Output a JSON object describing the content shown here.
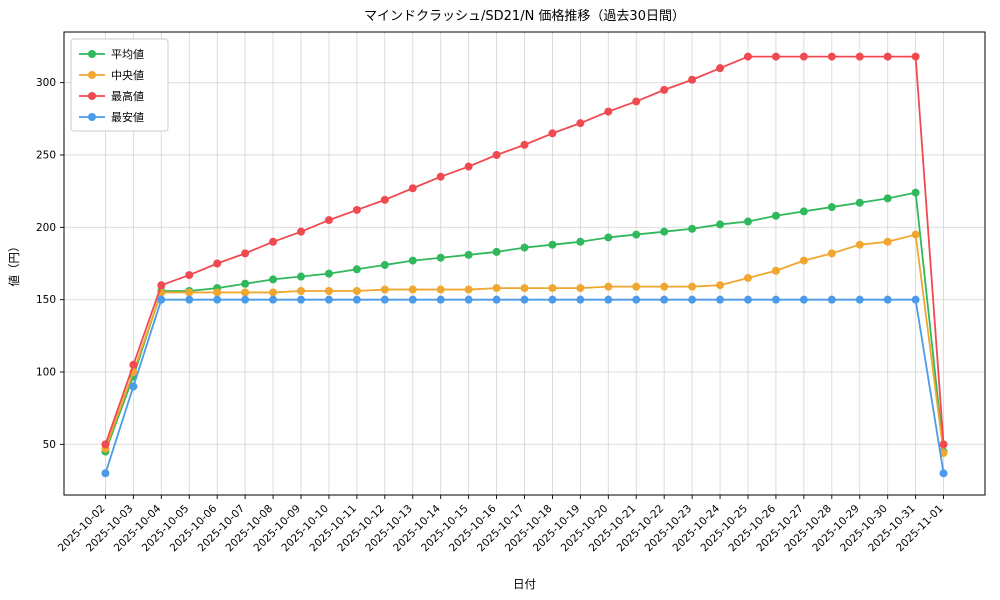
{
  "figure": {
    "title": "マインドクラッシュ/SD21/N 価格推移（過去30日間）",
    "xlabel": "日付",
    "ylabel": "値（円）"
  },
  "legend": {
    "position": "upper left",
    "entries": [
      "平均値",
      "中央値",
      "最高値",
      "最安値"
    ]
  },
  "chart_data": {
    "type": "line",
    "title": "マインドクラッシュ/SD21/N 価格推移（過去30日間）",
    "xlabel": "日付",
    "ylabel": "値（円）",
    "grid": true,
    "legend_position": "upper left",
    "ylim": [
      15,
      335
    ],
    "yticks": [
      50,
      100,
      150,
      200,
      250,
      300
    ],
    "x": [
      "2025-10-02",
      "2025-10-03",
      "2025-10-04",
      "2025-10-05",
      "2025-10-06",
      "2025-10-07",
      "2025-10-08",
      "2025-10-09",
      "2025-10-10",
      "2025-10-11",
      "2025-10-12",
      "2025-10-13",
      "2025-10-14",
      "2025-10-15",
      "2025-10-16",
      "2025-10-17",
      "2025-10-18",
      "2025-10-19",
      "2025-10-20",
      "2025-10-21",
      "2025-10-22",
      "2025-10-23",
      "2025-10-24",
      "2025-10-25",
      "2025-10-26",
      "2025-10-27",
      "2025-10-28",
      "2025-10-29",
      "2025-10-30",
      "2025-10-31",
      "2025-11-01"
    ],
    "series": [
      {
        "name": "平均値",
        "color": "#30b85c",
        "values": [
          45,
          97,
          156,
          156,
          158,
          161,
          164,
          166,
          168,
          171,
          174,
          177,
          179,
          181,
          183,
          186,
          188,
          190,
          193,
          195,
          197,
          199,
          202,
          204,
          208,
          211,
          214,
          217,
          220,
          224,
          45
        ]
      },
      {
        "name": "中央値",
        "color": "#f0a62f",
        "values": [
          47,
          100,
          155,
          155,
          155,
          155,
          155,
          156,
          156,
          156,
          157,
          157,
          157,
          157,
          158,
          158,
          158,
          158,
          159,
          159,
          159,
          159,
          160,
          165,
          170,
          177,
          182,
          188,
          190,
          195,
          44
        ]
      },
      {
        "name": "最高値",
        "color": "#f04a50",
        "values": [
          50,
          105,
          160,
          167,
          175,
          182,
          190,
          197,
          205,
          212,
          219,
          227,
          235,
          242,
          250,
          257,
          265,
          272,
          280,
          287,
          295,
          302,
          310,
          318,
          318,
          318,
          318,
          318,
          318,
          318,
          50
        ]
      },
      {
        "name": "最安値",
        "color": "#4c9bea",
        "values": [
          30,
          90,
          150,
          150,
          150,
          150,
          150,
          150,
          150,
          150,
          150,
          150,
          150,
          150,
          150,
          150,
          150,
          150,
          150,
          150,
          150,
          150,
          150,
          150,
          150,
          150,
          150,
          150,
          150,
          150,
          30
        ]
      }
    ]
  }
}
